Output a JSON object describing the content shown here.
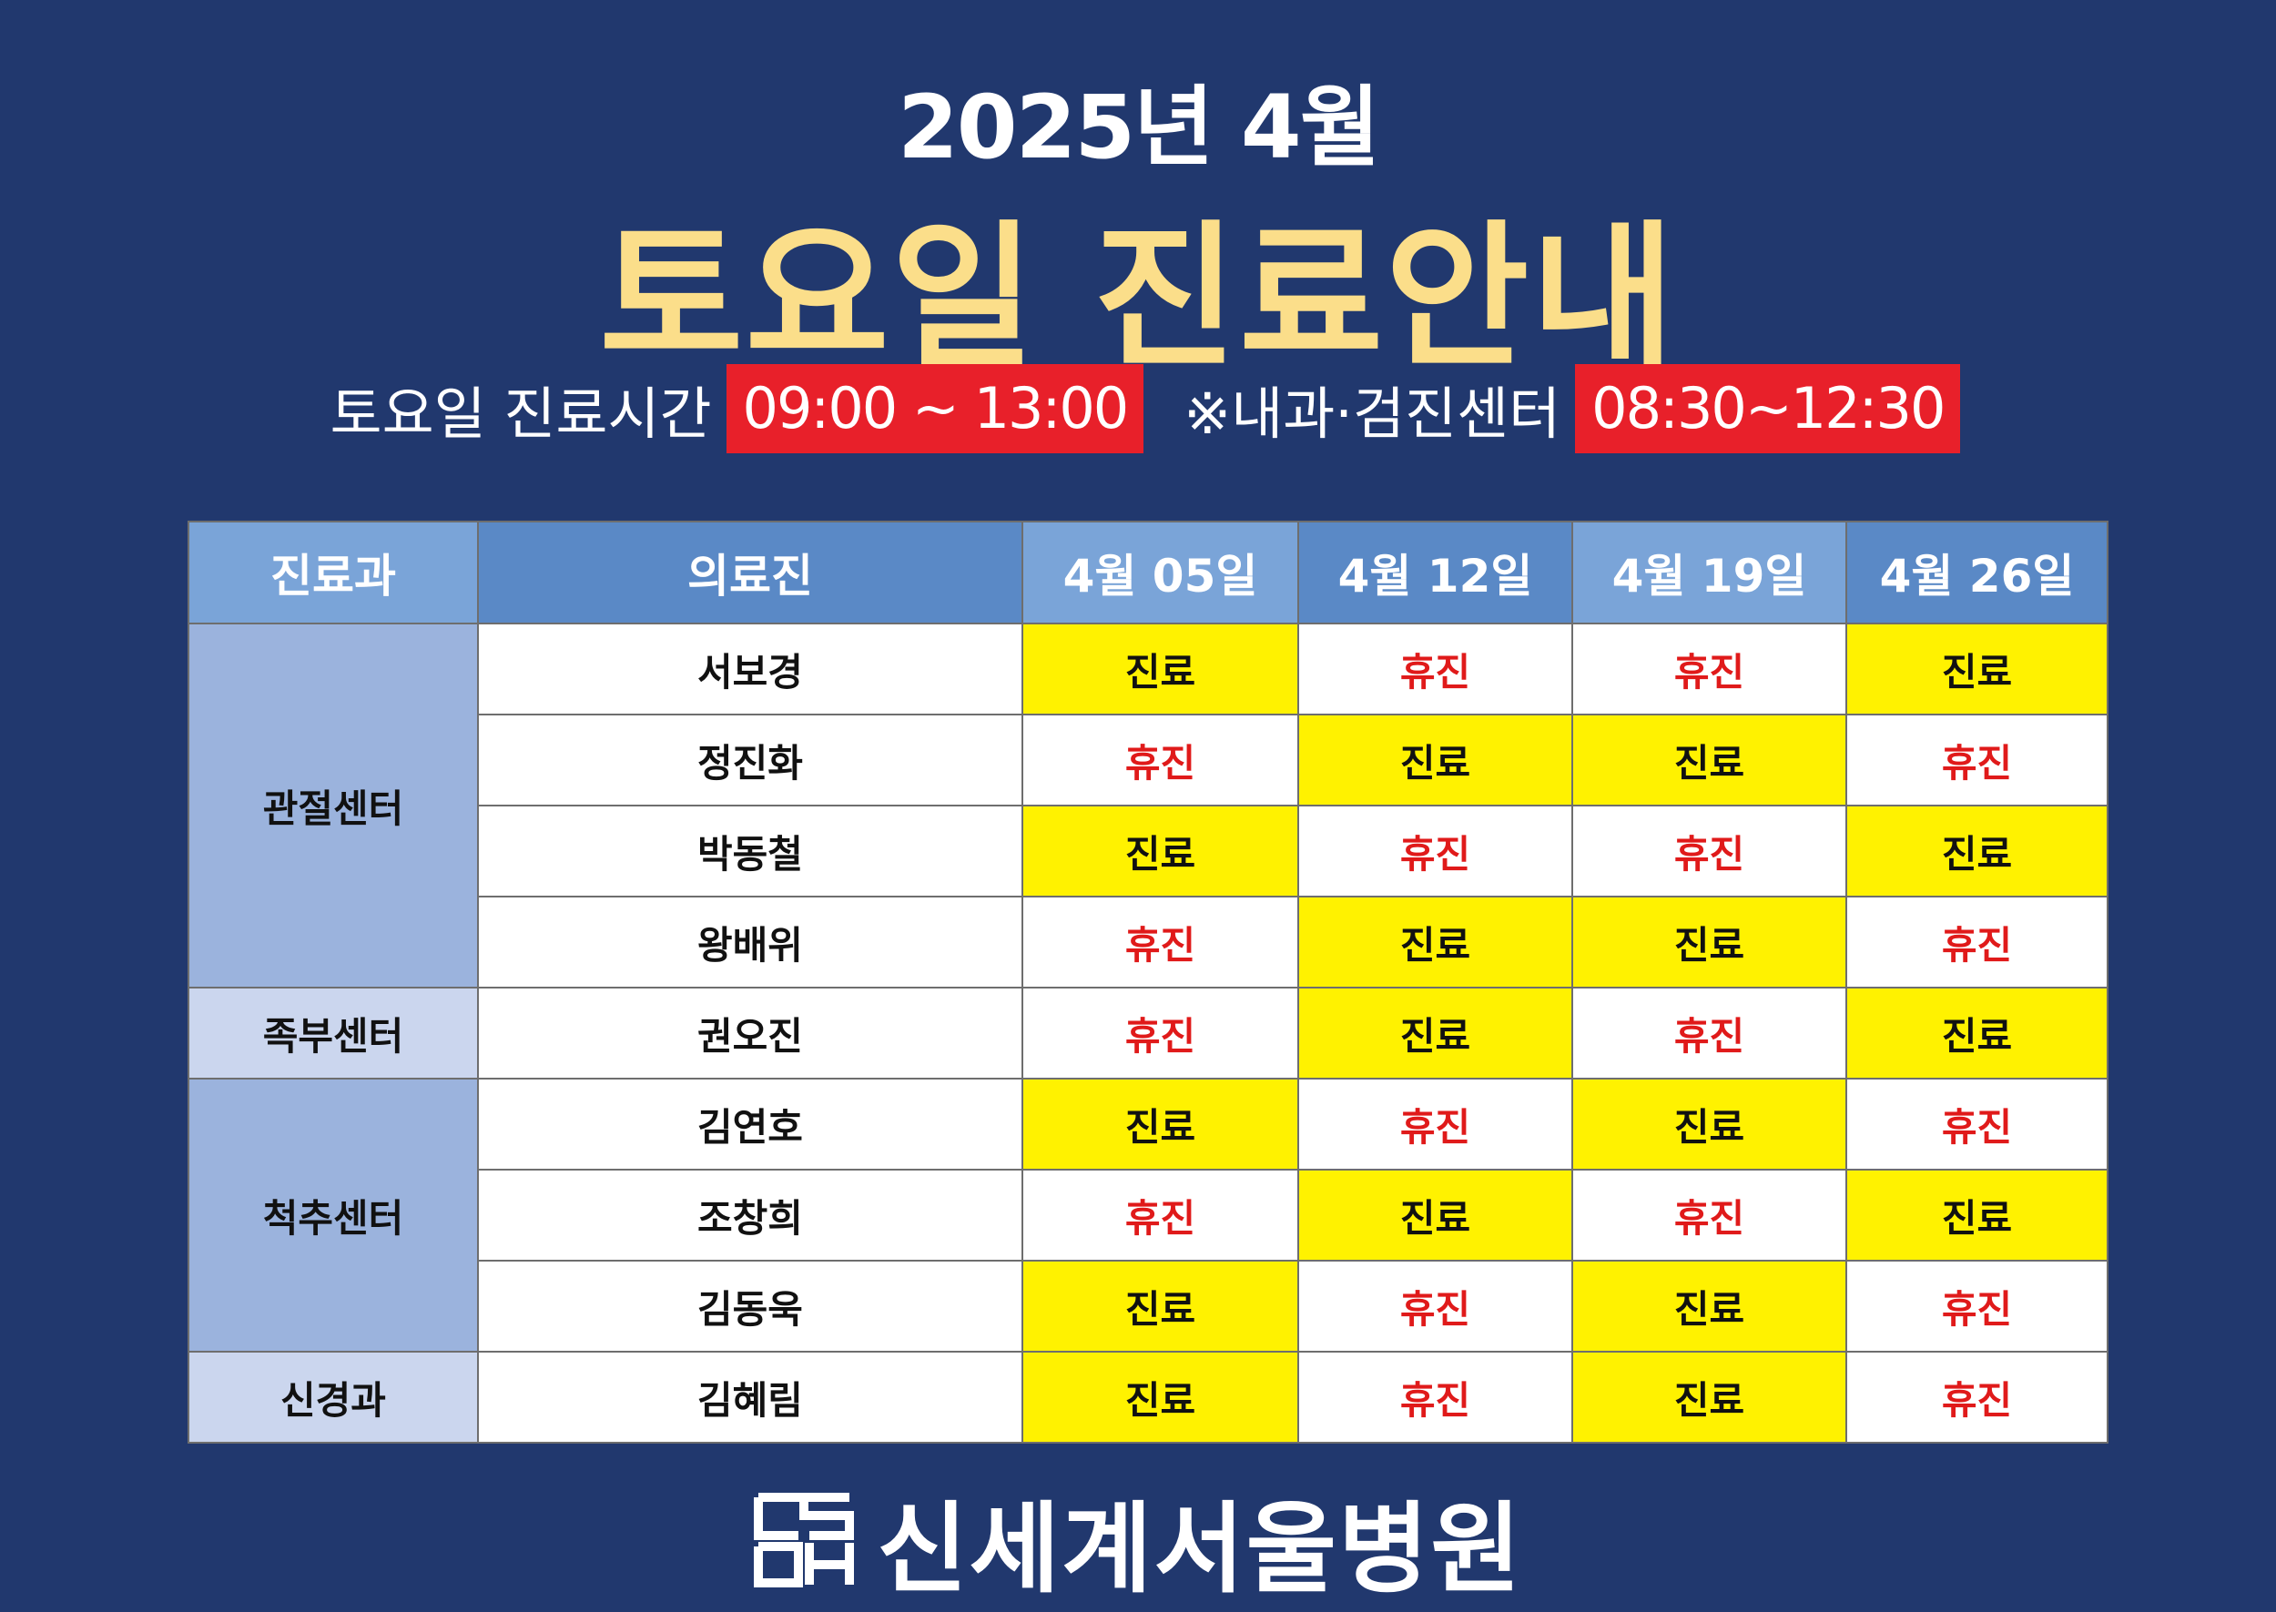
{
  "header": {
    "year_month": "2025년 4월",
    "title": "토요일 진료안내"
  },
  "hours": {
    "label": "토요일 진료시간",
    "time": "09:00 ~ 13:00",
    "label2": "※내과·검진센터",
    "time2": "08:30~12:30"
  },
  "table": {
    "headers": {
      "dept": "진료과",
      "doctor": "의료진",
      "dates": [
        "4월 05일",
        "4월 12일",
        "4월 19일",
        "4월 26일"
      ]
    },
    "departments": [
      "관절센터",
      "족부센터",
      "척추센터",
      "신경과"
    ],
    "rows": [
      {
        "doctor": "서보경",
        "status": [
          "진료",
          "휴진",
          "휴진",
          "진료"
        ]
      },
      {
        "doctor": "정진화",
        "status": [
          "휴진",
          "진료",
          "진료",
          "휴진"
        ]
      },
      {
        "doctor": "박동철",
        "status": [
          "진료",
          "휴진",
          "휴진",
          "진료"
        ]
      },
      {
        "doctor": "왕배위",
        "status": [
          "휴진",
          "진료",
          "진료",
          "휴진"
        ]
      },
      {
        "doctor": "권오진",
        "status": [
          "휴진",
          "진료",
          "휴진",
          "진료"
        ]
      },
      {
        "doctor": "김연호",
        "status": [
          "진료",
          "휴진",
          "진료",
          "휴진"
        ]
      },
      {
        "doctor": "조창희",
        "status": [
          "휴진",
          "진료",
          "휴진",
          "진료"
        ]
      },
      {
        "doctor": "김동욱",
        "status": [
          "진료",
          "휴진",
          "진료",
          "휴진"
        ]
      },
      {
        "doctor": "김혜림",
        "status": [
          "진료",
          "휴진",
          "진료",
          "휴진"
        ]
      }
    ]
  },
  "footer": {
    "hospital_name": "신세계서울병원",
    "logo_icon": "hospital-logo-icon"
  },
  "colors": {
    "background": "#21386e",
    "title_accent": "#fbde8a",
    "time_box": "#e8202a",
    "open_cell": "#fff200",
    "closed_text": "#e01a1a"
  }
}
